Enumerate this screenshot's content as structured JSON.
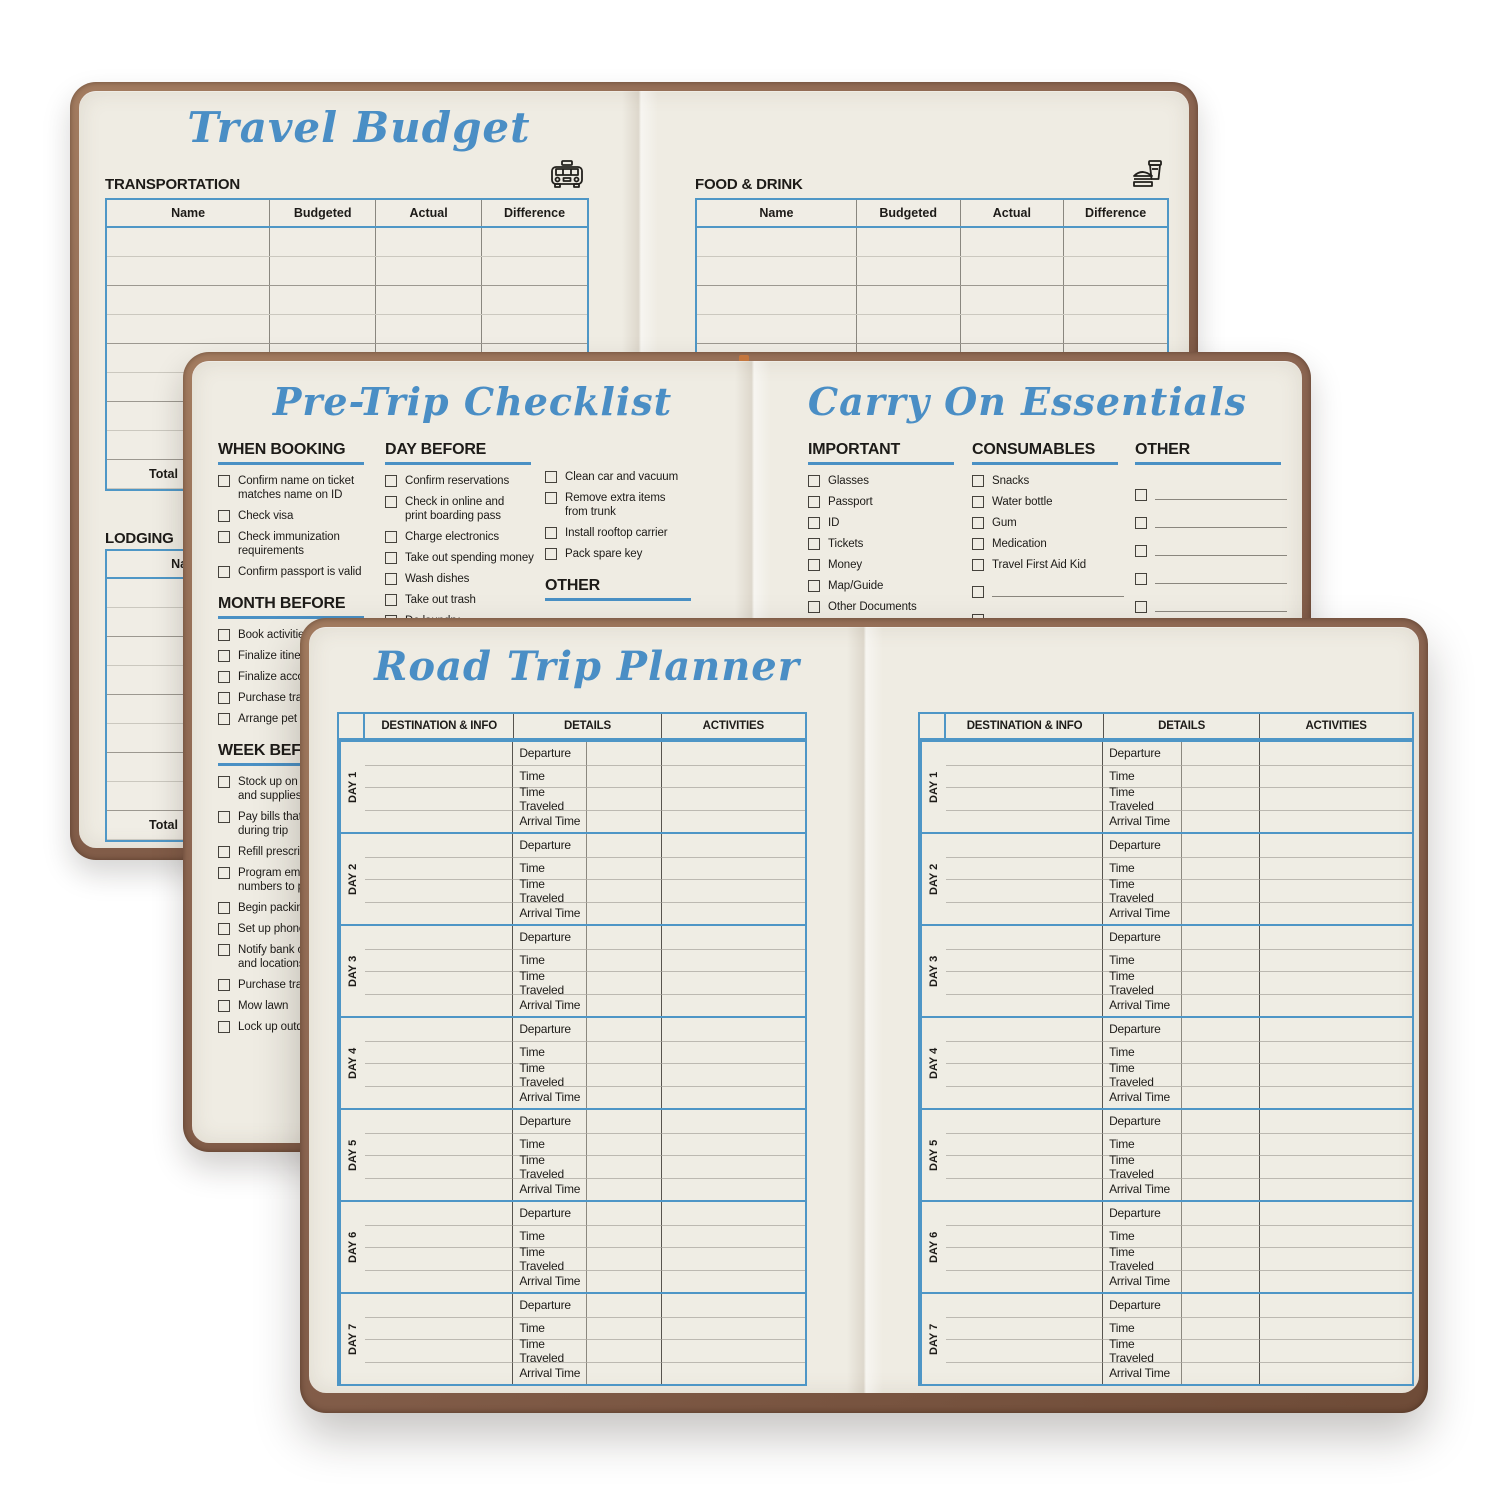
{
  "budget_page": {
    "title": "Travel Budget",
    "transportation_label": "TRANSPORTATION",
    "food_label": "FOOD & DRINK",
    "lodging_label": "LODGING",
    "columns": [
      "Name",
      "Budgeted",
      "Actual",
      "Difference"
    ],
    "blank_rows": 8,
    "total_label": "Total",
    "icons": {
      "transportation": "car-icon",
      "food": "burger-drink-icon"
    }
  },
  "checklist_page": {
    "title": "Pre-Trip Checklist",
    "col1": [
      {
        "heading": "WHEN BOOKING",
        "items": [
          "Confirm name on ticket\nmatches name on ID",
          "Check visa",
          "Check immunization\nrequirements",
          "Confirm passport is valid"
        ]
      },
      {
        "heading": "MONTH BEFORE",
        "items": [
          "Book activities / t",
          "Finalize itiner",
          "Finalize accor",
          "Purchase trav",
          "Arrange pet /"
        ]
      },
      {
        "heading": "WEEK BEFORE",
        "items": [
          "Stock up on p\nand supplies",
          "Pay bills that\nduring trip",
          "Refill prescrip",
          "Program eme\nnumbers to p",
          "Begin packin",
          "Set up phone",
          "Notify bank o\nand locations",
          "Purchase trav",
          "Mow lawn",
          "Lock up outd"
        ]
      }
    ],
    "col2": [
      {
        "heading": "DAY BEFORE",
        "items": [
          "Confirm reservations",
          "Check in online and\nprint boarding pass",
          "Charge electronics",
          "Take out spending money",
          "Wash dishes",
          "Take out trash",
          "Do laundry"
        ]
      }
    ],
    "col3": [
      {
        "heading": "",
        "items": [
          "Clean car and vacuum",
          "Remove extra items\nfrom trunk",
          "Install rooftop carrier",
          "Pack spare key"
        ]
      },
      {
        "heading": "OTHER",
        "items": []
      }
    ]
  },
  "carryon_page": {
    "title": "Carry On Essentials",
    "columns": [
      {
        "heading": "IMPORTANT",
        "items": [
          "Glasses",
          "Passport",
          "ID",
          "Tickets",
          "Money",
          "Map/Guide",
          "Other Documents"
        ],
        "write_ins": 0
      },
      {
        "heading": "CONSUMABLES",
        "items": [
          "Snacks",
          "Water bottle",
          "Gum",
          "Medication",
          "Travel First Aid Kid"
        ],
        "write_ins": 2
      },
      {
        "heading": "OTHER",
        "items": [],
        "write_ins": 5
      }
    ]
  },
  "roadtrip_page": {
    "title": "Road Trip Planner",
    "columns": [
      "DESTINATION & INFO",
      "DETAILS",
      "ACTIVITIES"
    ],
    "days": [
      "DAY 1",
      "DAY 2",
      "DAY 3",
      "DAY 4",
      "DAY 5",
      "DAY 6",
      "DAY 7"
    ],
    "detail_rows": [
      "Departure",
      "Time",
      "Time Traveled",
      "Arrival Time"
    ]
  },
  "colors": {
    "accent_blue": "#4a8ec5",
    "table_blue": "#4f97c6",
    "leather_brown": "#8a6450",
    "paper": "#efece3"
  }
}
